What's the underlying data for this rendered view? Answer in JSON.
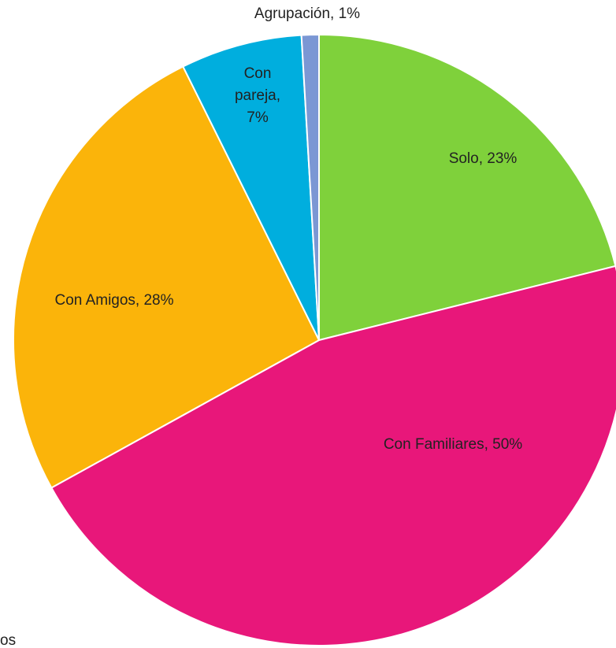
{
  "chart_data": {
    "type": "pie",
    "categories": [
      "Solo",
      "Con Familiares",
      "Con Amigos",
      "Con pareja",
      "Agrupación"
    ],
    "values": [
      23,
      50,
      28,
      7,
      1
    ],
    "value_labels": [
      "Solo, 23%",
      "Con Familiares, 50%",
      "Con Amigos, 28%",
      "Con pareja, 7%",
      "Agrupación, 1%"
    ],
    "colors": [
      "#7fd13b",
      "#e8177a",
      "#fbb40a",
      "#00aede",
      "#7b97d4"
    ],
    "footer_text": "os"
  }
}
